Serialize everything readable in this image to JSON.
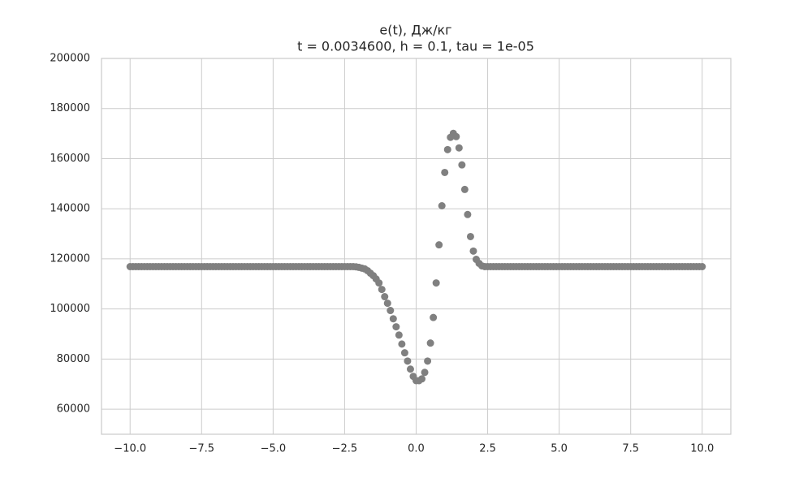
{
  "chart_data": {
    "type": "scatter",
    "title": "e(t), Дж/кг",
    "subtitle": "t = 0.0034600, h = 0.1, tau = 1e-05",
    "color": "#808080",
    "grid": true,
    "xlim": [
      -11,
      11
    ],
    "ylim": [
      50000,
      200000
    ],
    "xticks": [
      {
        "value": -10,
        "label": "−10.0"
      },
      {
        "value": -7.5,
        "label": "−7.5"
      },
      {
        "value": -5,
        "label": "−5.0"
      },
      {
        "value": -2.5,
        "label": "−2.5"
      },
      {
        "value": 0,
        "label": "0.0"
      },
      {
        "value": 2.5,
        "label": "2.5"
      },
      {
        "value": 5,
        "label": "5.0"
      },
      {
        "value": 7.5,
        "label": "7.5"
      },
      {
        "value": 10,
        "label": "10.0"
      }
    ],
    "yticks": [
      60000,
      80000,
      100000,
      120000,
      140000,
      160000,
      180000,
      200000
    ],
    "x": [
      -10,
      -9.9,
      -9.8,
      -9.7,
      -9.6,
      -9.5,
      -9.4,
      -9.3,
      -9.2,
      -9.1,
      -9,
      -8.9,
      -8.8,
      -8.7,
      -8.6,
      -8.5,
      -8.4,
      -8.3,
      -8.2,
      -8.1,
      -8,
      -7.9,
      -7.8,
      -7.7,
      -7.6,
      -7.5,
      -7.4,
      -7.3,
      -7.2,
      -7.1,
      -7,
      -6.9,
      -6.8,
      -6.7,
      -6.6,
      -6.5,
      -6.4,
      -6.3,
      -6.2,
      -6.1,
      -6,
      -5.9,
      -5.8,
      -5.7,
      -5.6,
      -5.5,
      -5.4,
      -5.3,
      -5.2,
      -5.1,
      -5,
      -4.9,
      -4.8,
      -4.7,
      -4.6,
      -4.5,
      -4.4,
      -4.3,
      -4.2,
      -4.1,
      -4,
      -3.9,
      -3.8,
      -3.7,
      -3.6,
      -3.5,
      -3.4,
      -3.3,
      -3.2,
      -3.1,
      -3,
      -2.9,
      -2.8,
      -2.7,
      -2.6,
      -2.5,
      -2.4,
      -2.3,
      -2.2,
      -2.1,
      -2,
      -1.9,
      -1.8,
      -1.7,
      -1.6,
      -1.5,
      -1.4,
      -1.3,
      -1.2,
      -1.1,
      -1,
      -0.9,
      -0.8,
      -0.7,
      -0.6,
      -0.5,
      -0.4,
      -0.3,
      -0.2,
      -0.1,
      0,
      0.1,
      0.2,
      0.3,
      0.4,
      0.5,
      0.6,
      0.7,
      0.8,
      0.9,
      1,
      1.1,
      1.2,
      1.3,
      1.4,
      1.5,
      1.6,
      1.7,
      1.8,
      1.9,
      2,
      2.1,
      2.2,
      2.3,
      2.4,
      2.5,
      2.6,
      2.7,
      2.8,
      2.9,
      3,
      3.1,
      3.2,
      3.3,
      3.4,
      3.5,
      3.6,
      3.7,
      3.8,
      3.9,
      4,
      4.1,
      4.2,
      4.3,
      4.4,
      4.5,
      4.6,
      4.7,
      4.8,
      4.9,
      5,
      5.1,
      5.2,
      5.3,
      5.4,
      5.5,
      5.6,
      5.7,
      5.8,
      5.9,
      6,
      6.1,
      6.2,
      6.3,
      6.4,
      6.5,
      6.6,
      6.7,
      6.8,
      6.9,
      7,
      7.1,
      7.2,
      7.3,
      7.4,
      7.5,
      7.6,
      7.7,
      7.8,
      7.9,
      8,
      8.1,
      8.2,
      8.3,
      8.4,
      8.5,
      8.6,
      8.7,
      8.8,
      8.9,
      9,
      9.1,
      9.2,
      9.3,
      9.4,
      9.5,
      9.6,
      9.7,
      9.8,
      9.9,
      10
    ],
    "values": [
      116900,
      116900,
      116900,
      116900,
      116900,
      116900,
      116900,
      116900,
      116900,
      116900,
      116900,
      116900,
      116900,
      116900,
      116900,
      116900,
      116900,
      116900,
      116900,
      116900,
      116900,
      116900,
      116900,
      116900,
      116900,
      116900,
      116900,
      116900,
      116900,
      116900,
      116900,
      116900,
      116900,
      116900,
      116900,
      116900,
      116900,
      116900,
      116900,
      116900,
      116900,
      116900,
      116900,
      116900,
      116900,
      116900,
      116900,
      116900,
      116900,
      116900,
      116900,
      116900,
      116900,
      116900,
      116900,
      116900,
      116900,
      116900,
      116900,
      116900,
      116900,
      116900,
      116900,
      116900,
      116900,
      116900,
      116900,
      116900,
      116900,
      116900,
      116900,
      116900,
      116900,
      116900,
      116900,
      116900,
      116900,
      116900,
      116900,
      116800,
      116600,
      116300,
      116000,
      115300,
      114300,
      113300,
      112000,
      110400,
      107800,
      104900,
      102300,
      99400,
      96100,
      92900,
      89600,
      86000,
      82500,
      79200,
      76000,
      73100,
      71400,
      71400,
      72100,
      74700,
      79200,
      86400,
      96600,
      110400,
      125600,
      141200,
      154500,
      163600,
      168500,
      170100,
      168800,
      164300,
      157500,
      147700,
      137700,
      128900,
      123100,
      119800,
      118200,
      117200,
      116900,
      116900,
      116900,
      116900,
      116900,
      116900,
      116900,
      116900,
      116900,
      116900,
      116900,
      116900,
      116900,
      116900,
      116900,
      116900,
      116900,
      116900,
      116900,
      116900,
      116900,
      116900,
      116900,
      116900,
      116900,
      116900,
      116900,
      116900,
      116900,
      116900,
      116900,
      116900,
      116900,
      116900,
      116900,
      116900,
      116900,
      116900,
      116900,
      116900,
      116900,
      116900,
      116900,
      116900,
      116900,
      116900,
      116900,
      116900,
      116900,
      116900,
      116900,
      116900,
      116900,
      116900,
      116900,
      116900,
      116900,
      116900,
      116900,
      116900,
      116900,
      116900,
      116900,
      116900,
      116900,
      116900,
      116900,
      116900,
      116900,
      116900,
      116900,
      116900,
      116900,
      116900,
      116900,
      116900,
      116900
    ]
  }
}
